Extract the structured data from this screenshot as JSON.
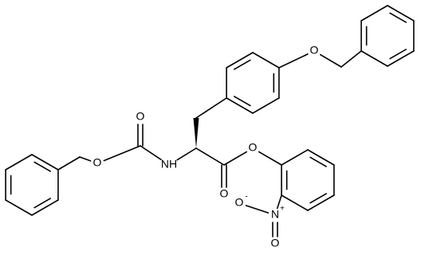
{
  "atoms": [
    {
      "label": "O"
    },
    {
      "label": "O"
    },
    {
      "label": "NH"
    },
    {
      "label": "O"
    },
    {
      "label": "O"
    },
    {
      "label": "O"
    },
    {
      "label": "N",
      "charge": "+"
    },
    {
      "label": "O",
      "charge": "-"
    },
    {
      "label": "O"
    }
  ]
}
